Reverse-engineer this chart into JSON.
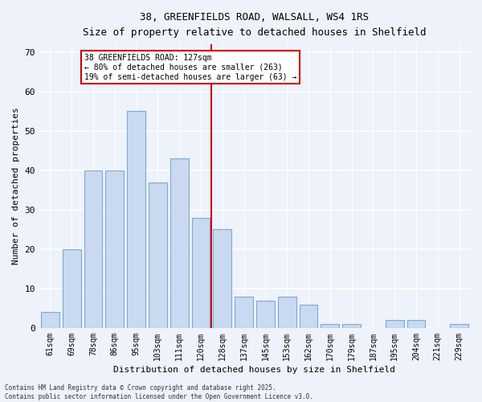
{
  "title1": "38, GREENFIELDS ROAD, WALSALL, WS4 1RS",
  "title2": "Size of property relative to detached houses in Shelfield",
  "xlabel": "Distribution of detached houses by size in Shelfield",
  "ylabel": "Number of detached properties",
  "categories": [
    "61sqm",
    "69sqm",
    "78sqm",
    "86sqm",
    "95sqm",
    "103sqm",
    "111sqm",
    "120sqm",
    "128sqm",
    "137sqm",
    "145sqm",
    "153sqm",
    "162sqm",
    "170sqm",
    "179sqm",
    "187sqm",
    "195sqm",
    "204sqm",
    "221sqm",
    "229sqm"
  ],
  "values": [
    4,
    20,
    40,
    40,
    55,
    37,
    43,
    28,
    25,
    8,
    7,
    8,
    6,
    1,
    1,
    0,
    2,
    2,
    0,
    1
  ],
  "bar_color": "#c9d9f0",
  "bar_edge_color": "#7aaad4",
  "ylim": [
    0,
    72
  ],
  "yticks": [
    0,
    10,
    20,
    30,
    40,
    50,
    60,
    70
  ],
  "marker_index": 8,
  "marker_line_color": "#cc0000",
  "annotation_text": "38 GREENFIELDS ROAD: 127sqm\n← 80% of detached houses are smaller (263)\n19% of semi-detached houses are larger (63) →",
  "background_color": "#eef2fb",
  "footer_text": "Contains HM Land Registry data © Crown copyright and database right 2025.\nContains public sector information licensed under the Open Government Licence v3.0."
}
